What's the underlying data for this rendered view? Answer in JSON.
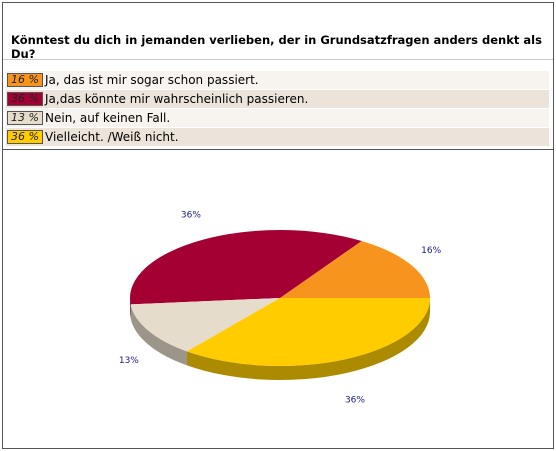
{
  "question": "Könntest du dich in jemanden verlieben, der in Grundsatzfragen anders denkt als Du?",
  "answers": [
    {
      "pct": "16 %",
      "label": "Ja, das ist mir sogar schon passiert.",
      "color": "#f7941d"
    },
    {
      "pct": "36 %",
      "label": "Ja,das könnte mir wahrscheinlich passieren.",
      "color": "#a50034"
    },
    {
      "pct": "13 %",
      "label": "Nein, auf keinen Fall.",
      "color": "#e6dccb"
    },
    {
      "pct": "36 %",
      "label": "Vielleicht. /Weiß nicht.",
      "color": "#ffcc00"
    }
  ],
  "chart_data": {
    "type": "pie",
    "title": "",
    "categories": [
      "Ja, das ist mir sogar schon passiert.",
      "Ja,das könnte mir wahrscheinlich passieren.",
      "Nein, auf keinen Fall.",
      "Vielleicht. /Weiß nicht."
    ],
    "values": [
      16,
      36,
      13,
      36
    ],
    "data_labels": [
      "16%",
      "36%",
      "13%",
      "36%"
    ],
    "colors": [
      "#f7941d",
      "#a50034",
      "#e6dccb",
      "#ffcc00"
    ],
    "style": "3d"
  }
}
